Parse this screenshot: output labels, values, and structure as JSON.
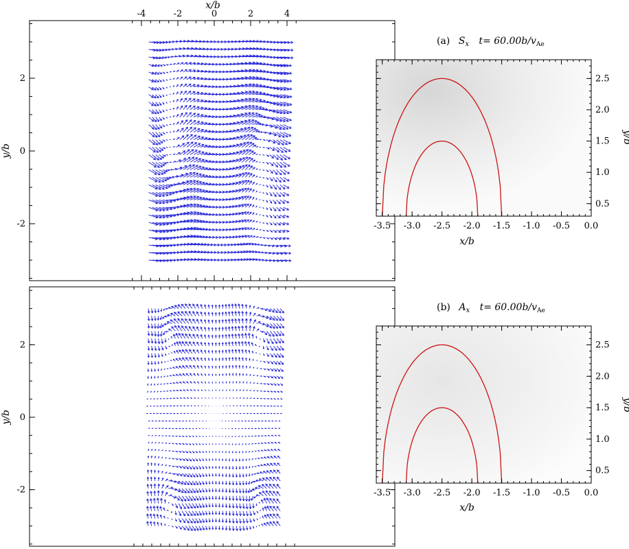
{
  "figure": {
    "panel_a_label": "(a)",
    "panel_a_var": "S",
    "panel_a_sub": "x",
    "panel_a_time": "t= 60.00b/v",
    "panel_a_time_sub": "Ae",
    "panel_b_label": "(b)",
    "panel_b_var": "A",
    "panel_b_sub": "x",
    "panel_b_time": "t= 60.00b/v",
    "panel_b_time_sub": "Ae"
  },
  "chart_data": [
    {
      "type": "quiver",
      "panel": "a-vector",
      "xlabel": "x/b",
      "ylabel": "y/b",
      "xlim": [
        -4.5,
        5
      ],
      "ylim": [
        -3.5,
        3.5
      ],
      "xticks": [
        "-4",
        "-2",
        "0",
        "2",
        "4"
      ],
      "xtick_values": [
        -4,
        -2,
        0,
        2,
        4
      ],
      "yticks": [
        "2",
        "0",
        "-2"
      ],
      "ytick_values": [
        2,
        0,
        -2
      ],
      "grid_x": [
        -3.6,
        3.8
      ],
      "grid_y": [
        -3.0,
        3.0
      ],
      "vortex_centers": [
        [
          -2.5,
          0
        ],
        [
          2.5,
          0
        ]
      ],
      "arrow_color": "#1f1fd6"
    },
    {
      "type": "contour",
      "panel": "a-zoom",
      "xlabel": "x/b",
      "ylabel": "y/b",
      "xlim": [
        -3.6,
        0.0
      ],
      "ylim": [
        0.3,
        2.8
      ],
      "xticks": [
        "-3.5",
        "-3.0",
        "-2.5",
        "-2.0",
        "-1.5",
        "-1.0",
        "-0.5",
        "0.0"
      ],
      "xtick_values": [
        -3.5,
        -3.0,
        -2.5,
        -2.0,
        -1.5,
        -1.0,
        -0.5,
        0.0
      ],
      "yticks": [
        "2.5",
        "2.0",
        "1.5",
        "1.0",
        "0.5"
      ],
      "ytick_values": [
        2.5,
        2.0,
        1.5,
        1.0,
        0.5
      ],
      "contours": [
        {
          "center_x": -2.5,
          "peak_y": 2.5,
          "half_width_at_0_3": 1.0
        },
        {
          "center_x": -2.5,
          "peak_y": 1.5,
          "half_width_at_0_3": 0.6
        }
      ],
      "contour_color": "#cc1111"
    },
    {
      "type": "quiver",
      "panel": "b-vector",
      "xlabel": "",
      "ylabel": "y/b",
      "xlim": [
        -4.5,
        5
      ],
      "ylim": [
        -3.5,
        3.5
      ],
      "yticks": [
        "2",
        "0",
        "-2"
      ],
      "ytick_values": [
        2,
        0,
        -2
      ],
      "grid_x": [
        -3.7,
        3.7
      ],
      "grid_y": [
        -3.0,
        3.0
      ],
      "vortex_centers": [
        [
          -2.5,
          0
        ],
        [
          2.5,
          0
        ]
      ],
      "arrow_color": "#1f1fd6"
    },
    {
      "type": "contour",
      "panel": "b-zoom",
      "xlabel": "x/b",
      "ylabel": "y/b",
      "xlim": [
        -3.6,
        0.0
      ],
      "ylim": [
        0.3,
        2.8
      ],
      "xticks": [
        "-3.5",
        "-3.0",
        "-2.5",
        "-2.0",
        "-1.5",
        "-1.0",
        "-0.5",
        "0.0"
      ],
      "xtick_values": [
        -3.5,
        -3.0,
        -2.5,
        -2.0,
        -1.5,
        -1.0,
        -0.5,
        0.0
      ],
      "yticks": [
        "2.5",
        "2.0",
        "1.5",
        "1.0",
        "0.5"
      ],
      "ytick_values": [
        2.5,
        2.0,
        1.5,
        1.0,
        0.5
      ],
      "contours": [
        {
          "center_x": -2.5,
          "peak_y": 2.5,
          "half_width_at_0_3": 1.0
        },
        {
          "center_x": -2.5,
          "peak_y": 1.5,
          "half_width_at_0_3": 0.6
        }
      ],
      "contour_color": "#cc1111"
    }
  ]
}
